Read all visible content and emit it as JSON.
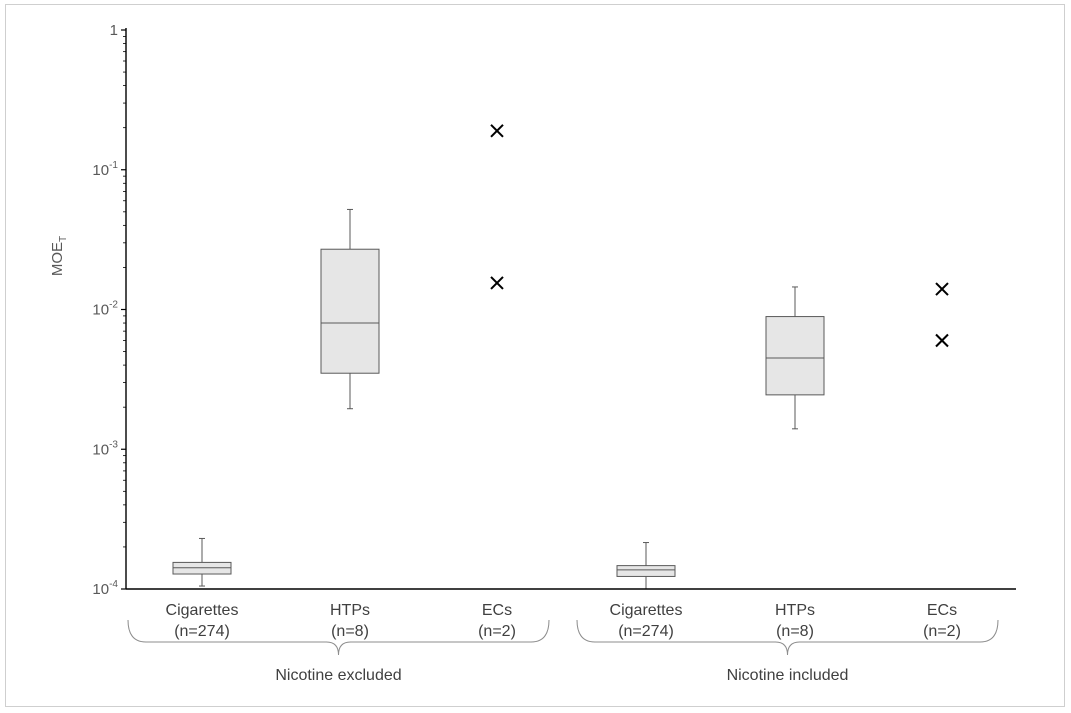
{
  "chart_data": {
    "type": "box",
    "ylabel": "MOE",
    "ylabel_sub": "T",
    "yscale": "log",
    "ylim": [
      0.0001,
      1
    ],
    "yticks": [
      {
        "value": 1,
        "base": "1",
        "exp": ""
      },
      {
        "value": 0.1,
        "base": "10",
        "exp": "-1"
      },
      {
        "value": 0.01,
        "base": "10",
        "exp": "-2"
      },
      {
        "value": 0.001,
        "base": "10",
        "exp": "-3"
      },
      {
        "value": 0.0001,
        "base": "10",
        "exp": "-4"
      }
    ],
    "groups": [
      {
        "label": "Nicotine excluded",
        "items": [
          {
            "name": "Cigarettes",
            "n": "(n=274)",
            "kind": "box",
            "min": 0.000105,
            "q1": 0.000128,
            "median": 0.000142,
            "q3": 0.000155,
            "max": 0.00023
          },
          {
            "name": "HTPs",
            "n": "(n=8)",
            "kind": "box",
            "min": 0.00195,
            "q1": 0.0035,
            "median": 0.008,
            "q3": 0.027,
            "max": 0.052
          },
          {
            "name": "ECs",
            "n": "(n=2)",
            "kind": "points",
            "points": [
              0.19,
              0.0155
            ]
          }
        ]
      },
      {
        "label": "Nicotine included",
        "items": [
          {
            "name": "Cigarettes",
            "n": "(n=274)",
            "kind": "box",
            "min": 0.0001,
            "q1": 0.000123,
            "median": 0.000137,
            "q3": 0.000147,
            "max": 0.000215
          },
          {
            "name": "HTPs",
            "n": "(n=8)",
            "kind": "box",
            "min": 0.0014,
            "q1": 0.00245,
            "median": 0.0045,
            "q3": 0.0089,
            "max": 0.0145
          },
          {
            "name": "ECs",
            "n": "(n=2)",
            "kind": "points",
            "points": [
              0.014,
              0.006
            ]
          }
        ]
      }
    ],
    "colors": {
      "box_fill": "#e6e6e6",
      "box_stroke": "#595959",
      "marker": "#000000",
      "axis": "#000000"
    }
  }
}
